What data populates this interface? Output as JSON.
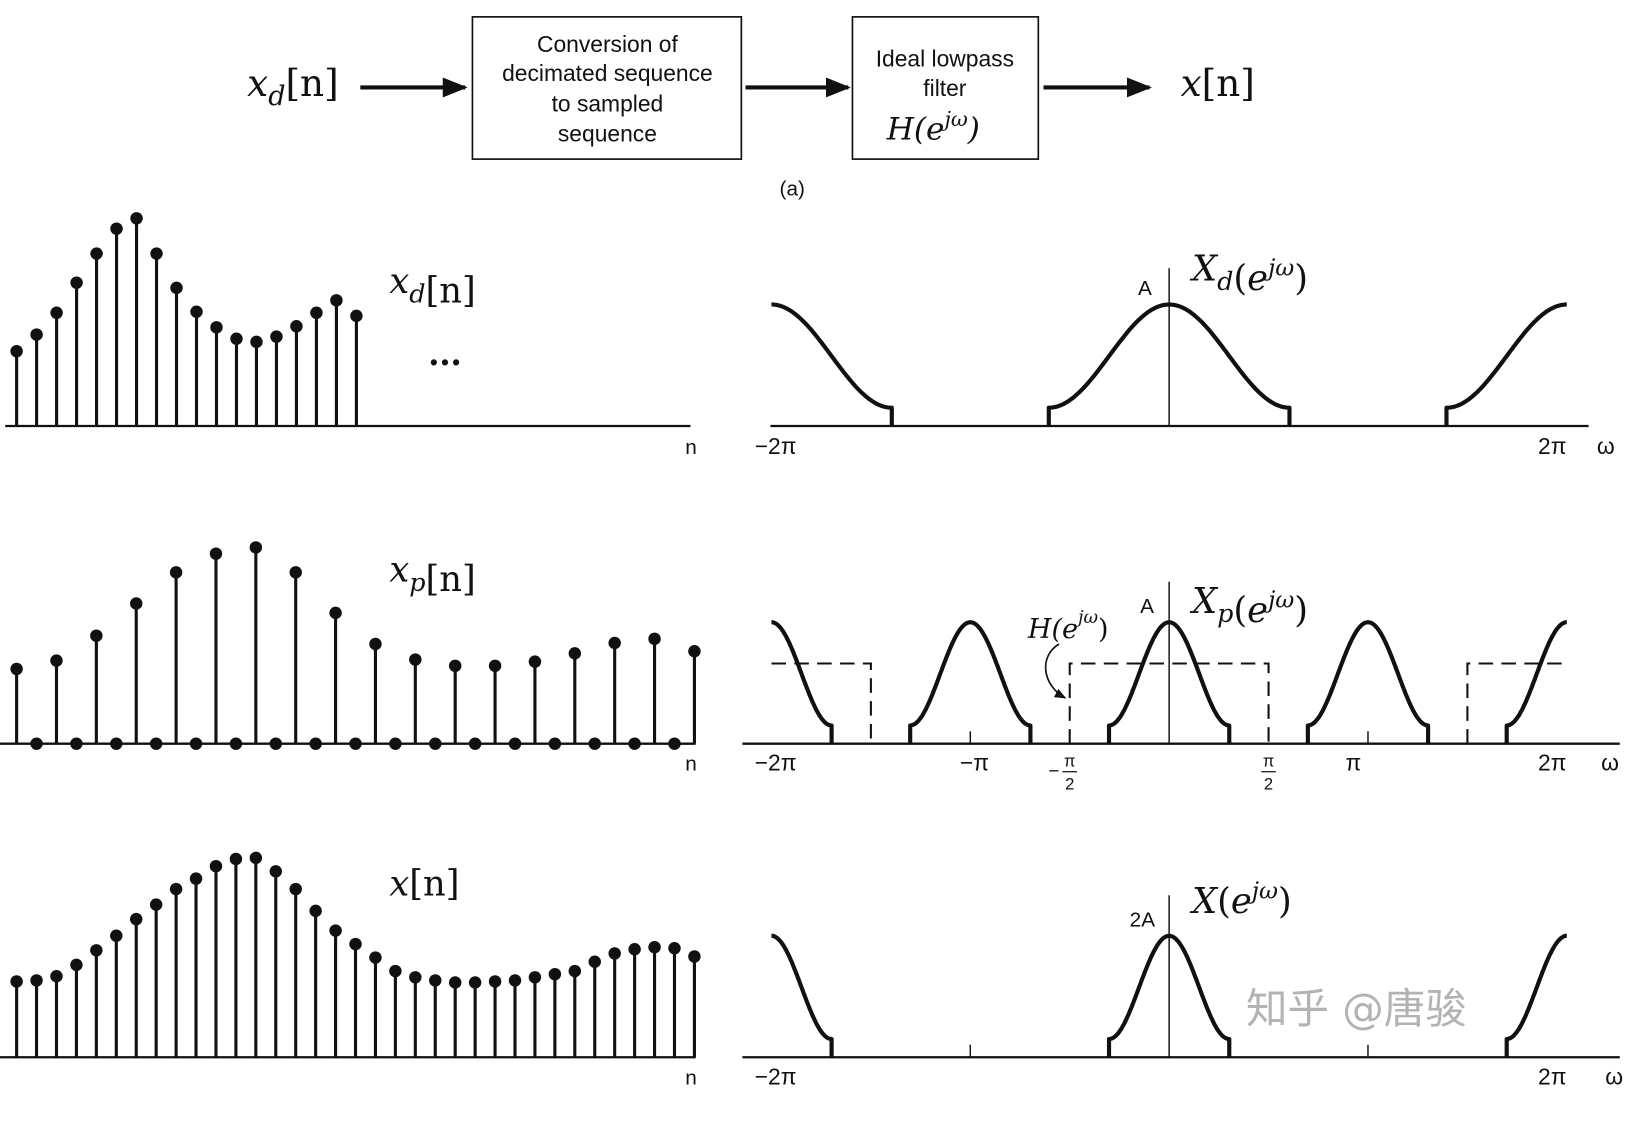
{
  "block_diagram": {
    "input_label": "x_d[n]",
    "input_main": "x",
    "input_sub": "d",
    "input_arg": "[n]",
    "block1_lines": [
      "Conversion of",
      "decimated sequence",
      "to sampled",
      "sequence"
    ],
    "block2_lines": [
      "Ideal lowpass",
      "filter"
    ],
    "block2_math_main": "H(e",
    "block2_math_sup": "jω",
    "block2_math_close": ")",
    "output_label": "x[n]",
    "caption": "(a)"
  },
  "time_panels": [
    {
      "label_main": "x",
      "label_sub": "d",
      "label_arg": "[n]",
      "axis_label": "n",
      "ellipsis": "•••",
      "values": [
        0.36,
        0.44,
        0.545,
        0.69,
        0.83,
        0.95,
        1.0,
        0.83,
        0.665,
        0.55,
        0.475,
        0.42,
        0.405,
        0.43,
        0.48,
        0.545,
        0.605,
        0.53
      ]
    },
    {
      "label_main": "x",
      "label_sub": "p",
      "label_arg": "[n]",
      "axis_label": "n",
      "values": [
        0.36,
        0,
        0.4,
        0,
        0.52,
        0,
        0.675,
        0,
        0.825,
        0,
        0.915,
        0,
        0.945,
        0,
        0.825,
        0,
        0.63,
        0,
        0.48,
        0,
        0.405,
        0,
        0.375,
        0,
        0.375,
        0,
        0.395,
        0,
        0.435,
        0,
        0.485,
        0,
        0.505,
        0,
        0.445
      ]
    },
    {
      "label_main": "x",
      "label_sub": "",
      "label_arg": "[n]",
      "axis_label": "n",
      "values": [
        0.365,
        0.37,
        0.39,
        0.445,
        0.515,
        0.585,
        0.665,
        0.735,
        0.81,
        0.86,
        0.92,
        0.955,
        0.96,
        0.895,
        0.81,
        0.705,
        0.61,
        0.545,
        0.48,
        0.415,
        0.385,
        0.37,
        0.36,
        0.36,
        0.365,
        0.37,
        0.385,
        0.4,
        0.415,
        0.46,
        0.5,
        0.52,
        0.53,
        0.525,
        0.485
      ]
    }
  ],
  "freq_panels": [
    {
      "title_main": "X",
      "title_sub": "d",
      "title_open": "(e",
      "title_sup": "jω",
      "title_close": ")",
      "peak_label": "A",
      "axis_label": "ω",
      "period_compression": 1,
      "bump_centers_pi": [
        -2,
        0,
        2
      ],
      "ticks": [
        {
          "label": "−2π",
          "omega_pi": -2
        },
        {
          "label": "2π",
          "omega_pi": 2
        }
      ]
    },
    {
      "title_main": "X",
      "title_sub": "p",
      "title_open": "(e",
      "title_sup": "jω",
      "title_close": ")",
      "peak_label": "A",
      "axis_label": "ω",
      "period_compression": 2,
      "bump_centers_pi": [
        -2,
        -1,
        0,
        1,
        2
      ],
      "filter_label_main": "H(e",
      "filter_label_sup": "jω",
      "filter_label_close": ")",
      "filter_cutoff_pi": 0.5,
      "filter_gain_rel": 0.66,
      "ticks": [
        {
          "label": "−2π",
          "omega_pi": -2
        },
        {
          "label": "−π",
          "omega_pi": -1
        },
        {
          "label": "π",
          "omega_pi": 1
        },
        {
          "label": "2π",
          "omega_pi": 2
        }
      ],
      "frac_ticks": [
        {
          "sign": "−",
          "num": "π",
          "den": "2",
          "omega_pi": -0.5
        },
        {
          "sign": "",
          "num": "π",
          "den": "2",
          "omega_pi": 0.5
        }
      ]
    },
    {
      "title_main": "X",
      "title_sub": "",
      "title_open": "(e",
      "title_sup": "jω",
      "title_close": ")",
      "peak_label": "2A",
      "axis_label": "ω",
      "period_compression": 2,
      "bump_centers_pi": [
        -2,
        0,
        2
      ],
      "ticks": [
        {
          "label": "−2π",
          "omega_pi": -2
        },
        {
          "label": "2π",
          "omega_pi": 2
        }
      ]
    }
  ],
  "watermark": "知乎 @唐骏"
}
